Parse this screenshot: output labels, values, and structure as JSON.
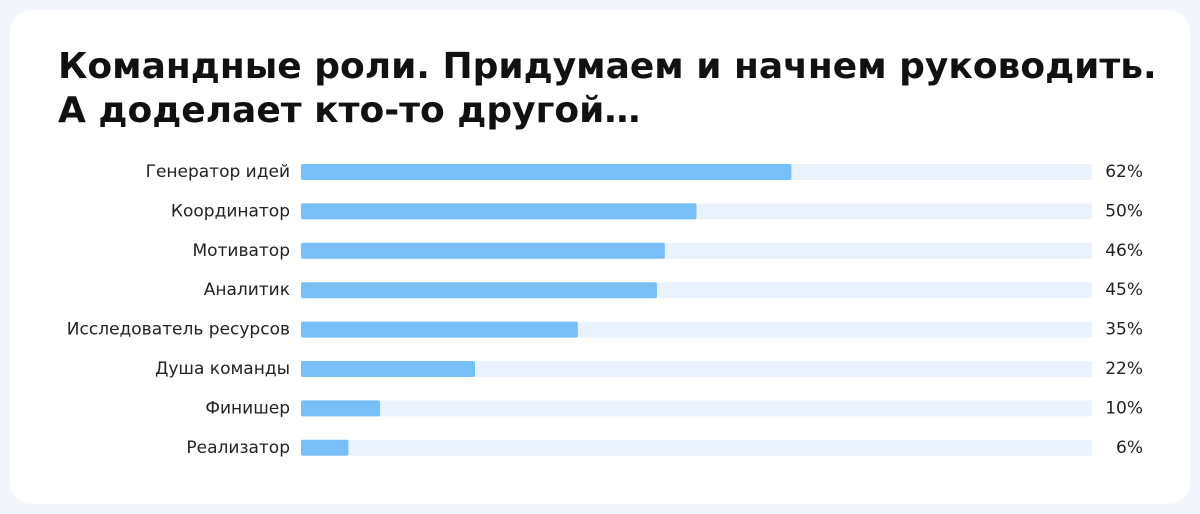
{
  "chart_data": {
    "type": "hbar",
    "title": [
      "Командные роли. Придумаем и начнем руководить.",
      "А доделает кто-то другой…"
    ],
    "categories": [
      "Генератор идей",
      "Координатор",
      "Мотиватор",
      "Аналитик",
      "Исследователь ресурсов",
      "Душа команды",
      "Финишер",
      "Реализатор"
    ],
    "values": [
      62,
      50,
      46,
      45,
      35,
      22,
      10,
      6
    ],
    "value_labels": [
      "62%",
      "50%",
      "46%",
      "45%",
      "35%",
      "22%",
      "10%",
      "6%"
    ],
    "xlim": [
      0,
      100
    ],
    "color": "#78bff8",
    "track_color": "#eaf3fd"
  }
}
